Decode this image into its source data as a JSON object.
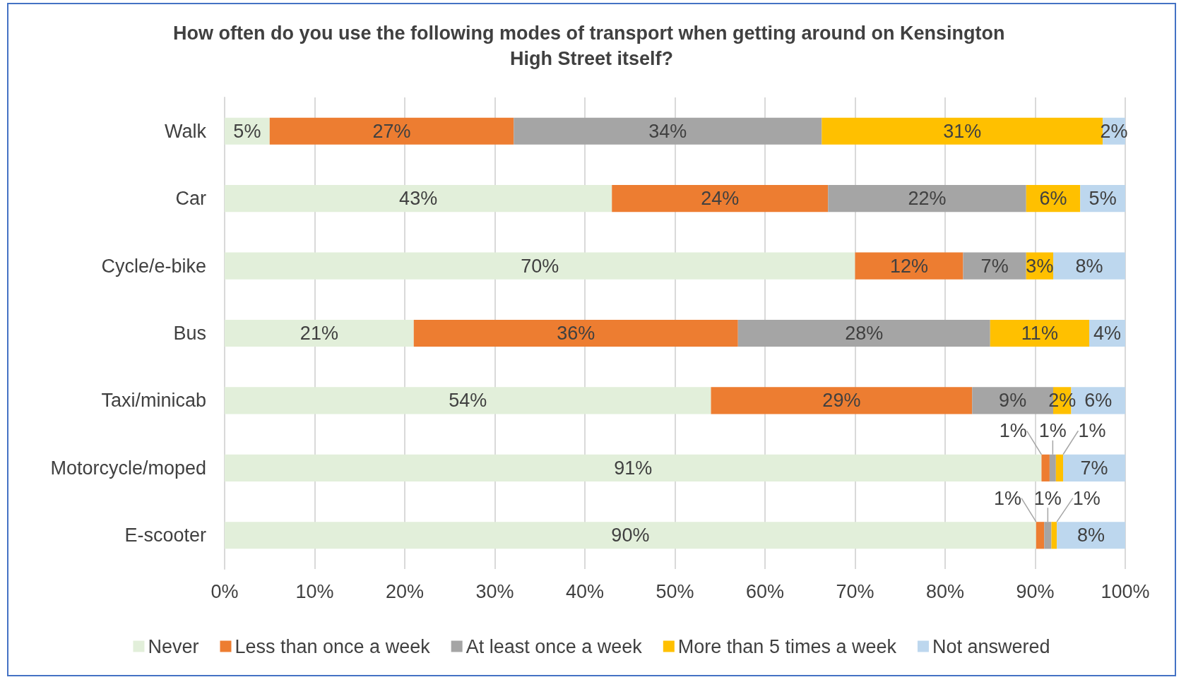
{
  "chart_data": {
    "type": "bar",
    "orientation": "horizontal",
    "stacked": true,
    "title": "How often do you use the following modes of transport when getting around on Kensington High Street itself?",
    "categories": [
      "Walk",
      "Car",
      "Cycle/e-bike",
      "Bus",
      "Taxi/minicab",
      "Motorcycle/moped",
      "E-scooter"
    ],
    "series": [
      {
        "name": "Never",
        "color": "#e2efda",
        "values": [
          5,
          43,
          70,
          21,
          54,
          90.7,
          90.1
        ],
        "value_labels": [
          "5%",
          "43%",
          "70%",
          "21%",
          "54%",
          "91%",
          "90%"
        ]
      },
      {
        "name": "Less than once a week",
        "color": "#ed7d31",
        "values": [
          27.1,
          24,
          12,
          36,
          29,
          0.9,
          0.9
        ],
        "value_labels": [
          "27%",
          "24%",
          "12%",
          "36%",
          "29%",
          "1%",
          "1%"
        ]
      },
      {
        "name": "At least once a week",
        "color": "#a5a5a5",
        "values": [
          34.2,
          22,
          7,
          28,
          9,
          0.7,
          0.8
        ],
        "value_labels": [
          "34%",
          "22%",
          "7%",
          "28%",
          "9%",
          "1%",
          "1%"
        ]
      },
      {
        "name": "More than 5 times a week",
        "color": "#ffc000",
        "values": [
          31.2,
          6,
          3,
          11,
          2,
          0.8,
          0.6
        ],
        "value_labels": [
          "31%",
          "6%",
          "3%",
          "11%",
          "2%",
          "1%",
          "1%"
        ]
      },
      {
        "name": "Not answered",
        "color": "#bdd7ee",
        "values": [
          2.5,
          5,
          8,
          4,
          6,
          6.9,
          7.6
        ],
        "value_labels": [
          "2%",
          "5%",
          "8%",
          "4%",
          "6%",
          "7%",
          "8%"
        ]
      }
    ],
    "xlim": [
      0,
      100
    ],
    "xticks": [
      {
        "value": 0,
        "label": "0%"
      },
      {
        "value": 10,
        "label": "10%"
      },
      {
        "value": 20,
        "label": "20%"
      },
      {
        "value": 30,
        "label": "30%"
      },
      {
        "value": 40,
        "label": "40%"
      },
      {
        "value": 50,
        "label": "50%"
      },
      {
        "value": 60,
        "label": "60%"
      },
      {
        "value": 70,
        "label": "70%"
      },
      {
        "value": 80,
        "label": "80%"
      },
      {
        "value": 90,
        "label": "90%"
      },
      {
        "value": 100,
        "label": "100%"
      }
    ],
    "grid": "x",
    "legend": "bottom"
  }
}
